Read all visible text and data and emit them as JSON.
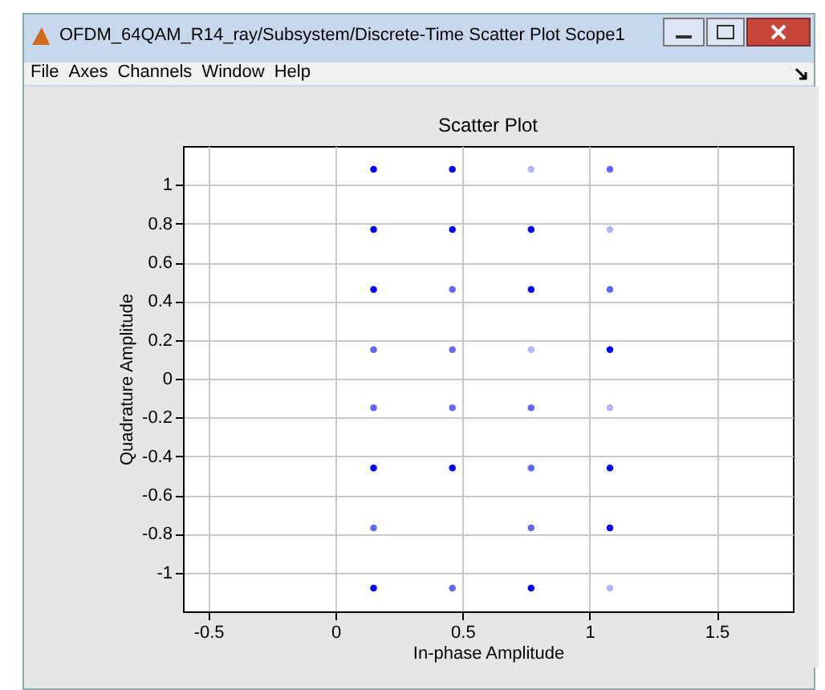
{
  "chart_data": {
    "type": "scatter",
    "title": "Scatter Plot",
    "xlabel": "In-phase Amplitude",
    "ylabel": "Quadrature Amplitude",
    "annotations": [
      "OFDM_64QAM_R14_ray/Subsystem/Discrete-Time Scatter Plot Scope1",
      "File",
      "Axes",
      "Channels",
      "Window",
      "Help"
    ],
    "xlim": [
      -0.6,
      1.8
    ],
    "xticks": [
      -0.5,
      0,
      0.5,
      1,
      1.5
    ],
    "ylim": [
      -1.2,
      1.2
    ],
    "yticks": [
      -1,
      -0.8,
      -0.6,
      -0.4,
      -0.2,
      0,
      0.2,
      0.4,
      0.6,
      0.8,
      1
    ],
    "grid": true,
    "marker": "circle",
    "series": [
      {
        "x": [
          0.15,
          0.46,
          0.77,
          1.08,
          0.15,
          0.46,
          0.77,
          1.08,
          0.15,
          0.46,
          0.77,
          1.08,
          0.15,
          0.46,
          0.77,
          1.08,
          0.15,
          0.46,
          0.77,
          1.08,
          0.15,
          0.46,
          0.77,
          1.08,
          0.15,
          0.77,
          1.08,
          0.15,
          0.46,
          0.77,
          1.08
        ],
        "values": [
          1.08,
          1.08,
          1.08,
          1.08,
          0.77,
          0.77,
          0.77,
          0.77,
          0.46,
          0.46,
          0.46,
          0.46,
          0.15,
          0.15,
          0.15,
          0.15,
          -0.15,
          -0.15,
          -0.15,
          -0.15,
          -0.46,
          -0.46,
          -0.46,
          -0.46,
          -0.77,
          -0.77,
          -0.77,
          -1.08,
          -1.08,
          -1.08,
          -1.08
        ],
        "colors": [
          "#0000ff",
          "#0000ff",
          "#b4b4ff",
          "#6464ff",
          "#0000ff",
          "#0000ff",
          "#0000ff",
          "#b4b4ff",
          "#0000ff",
          "#6464ff",
          "#0000ff",
          "#6464ff",
          "#6464ff",
          "#6464ff",
          "#b4b4ff",
          "#0000ff",
          "#6464ff",
          "#6464ff",
          "#6464ff",
          "#b4b4ff",
          "#0000ff",
          "#0000ff",
          "#6464ff",
          "#0000ff",
          "#6464ff",
          "#6464ff",
          "#0000ff",
          "#0000ff",
          "#6464ff",
          "#0000ff",
          "#b4b4ff"
        ]
      }
    ]
  }
}
